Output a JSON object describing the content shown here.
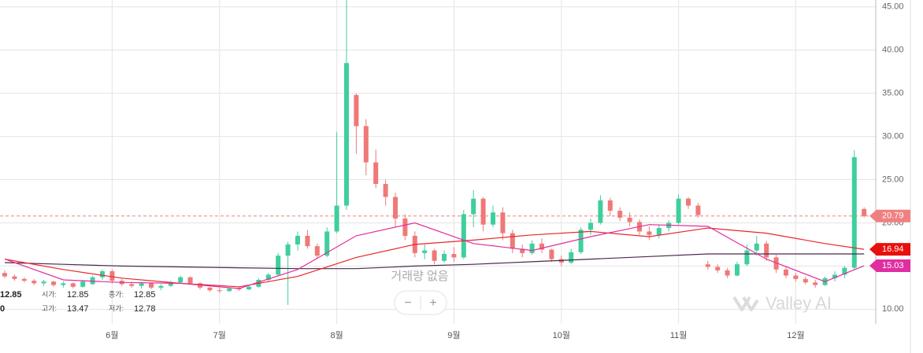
{
  "chart_data": {
    "type": "candlestick",
    "categories": [
      null,
      null,
      null,
      null,
      null,
      null,
      null,
      null,
      null,
      null,
      null,
      "6월",
      null,
      null,
      null,
      null,
      null,
      null,
      null,
      null,
      null,
      null,
      "7월",
      null,
      null,
      null,
      null,
      null,
      null,
      null,
      null,
      null,
      null,
      null,
      "8월",
      null,
      null,
      null,
      null,
      null,
      null,
      null,
      null,
      null,
      null,
      null,
      "9월",
      null,
      null,
      null,
      null,
      null,
      null,
      null,
      null,
      null,
      null,
      "10월",
      null,
      null,
      null,
      null,
      null,
      null,
      null,
      null,
      null,
      null,
      null,
      "11월",
      null,
      null,
      null,
      null,
      null,
      null,
      null,
      null,
      null,
      null,
      null,
      "12월",
      null,
      null,
      null,
      null,
      null,
      null,
      null
    ],
    "open": [
      14.2,
      13.8,
      13.5,
      13.3,
      13.0,
      13.2,
      12.8,
      13.0,
      12.6,
      12.9,
      13.7,
      14.4,
      13.3,
      12.9,
      12.7,
      13.0,
      12.5,
      12.7,
      13.1,
      13.7,
      13.0,
      12.5,
      12.2,
      12.1,
      12.4,
      12.3,
      12.6,
      13.4,
      14.0,
      16.2,
      17.5,
      18.5,
      17.3,
      16.2,
      19.0,
      22.0,
      34.8,
      31.2,
      27.0,
      24.5,
      23.0,
      20.5,
      18.5,
      16.5,
      16.8,
      15.6,
      16.4,
      16.0,
      21.0,
      22.8,
      19.8,
      21.2,
      18.8,
      17.0,
      16.5,
      17.6,
      16.9,
      15.8,
      15.4,
      16.6,
      19.2,
      20.0,
      22.6,
      21.4,
      20.6,
      20.1,
      19.0,
      18.6,
      19.4,
      20.0,
      22.8,
      22.0,
      15.2,
      14.9,
      14.5,
      13.9,
      15.2,
      16.8,
      17.6,
      16.0,
      14.6,
      13.9,
      13.5,
      13.1,
      12.8,
      13.6,
      14.0,
      14.8,
      21.6
    ],
    "high": [
      14.5,
      14.0,
      13.7,
      13.5,
      13.4,
      13.3,
      13.2,
      13.1,
      13.4,
      13.9,
      14.6,
      14.6,
      13.5,
      13.2,
      13.2,
      13.1,
      12.9,
      13.3,
      13.9,
      13.8,
      13.1,
      12.6,
      12.5,
      12.5,
      12.6,
      12.8,
      13.6,
      14.2,
      16.5,
      17.8,
      19.0,
      19.2,
      17.6,
      19.5,
      30.5,
      45.8,
      35.0,
      32.0,
      28.5,
      25.0,
      23.5,
      21.0,
      19.0,
      17.5,
      17.0,
      16.8,
      17.2,
      21.5,
      23.8,
      23.0,
      22.0,
      21.8,
      19.2,
      17.5,
      18.0,
      18.2,
      17.0,
      16.2,
      17.0,
      19.5,
      20.5,
      23.2,
      22.9,
      21.8,
      21.2,
      20.4,
      19.6,
      19.8,
      20.3,
      23.3,
      23.0,
      22.3,
      15.6,
      15.2,
      14.8,
      15.5,
      17.5,
      18.5,
      17.9,
      16.3,
      14.9,
      14.2,
      13.8,
      13.4,
      13.8,
      14.4,
      15.0,
      28.4,
      21.8
    ],
    "low": [
      13.6,
      13.3,
      13.1,
      12.8,
      12.7,
      12.6,
      12.5,
      12.4,
      12.5,
      12.8,
      13.4,
      13.0,
      12.7,
      12.5,
      12.4,
      12.3,
      12.2,
      12.6,
      13.0,
      12.8,
      12.3,
      12.0,
      11.9,
      12.0,
      12.1,
      12.2,
      12.5,
      13.2,
      13.8,
      10.5,
      16.8,
      17.0,
      15.8,
      16.0,
      18.8,
      21.5,
      28.0,
      25.5,
      24.0,
      22.0,
      19.5,
      18.0,
      16.0,
      15.8,
      15.2,
      15.4,
      15.5,
      15.8,
      19.5,
      19.0,
      19.5,
      18.0,
      16.5,
      16.0,
      16.3,
      16.5,
      15.5,
      15.0,
      15.2,
      16.4,
      18.6,
      19.8,
      20.8,
      20.2,
      19.6,
      18.6,
      18.0,
      18.2,
      19.0,
      19.8,
      21.6,
      20.6,
      14.6,
      14.2,
      13.6,
      13.8,
      15.0,
      16.2,
      15.6,
      14.2,
      13.6,
      13.2,
      12.9,
      12.5,
      12.7,
      13.2,
      13.6,
      14.6,
      20.6
    ],
    "close": [
      13.8,
      13.5,
      13.3,
      13.0,
      13.2,
      12.8,
      13.0,
      12.6,
      13.2,
      13.7,
      14.4,
      13.3,
      12.9,
      12.7,
      13.0,
      12.5,
      12.7,
      13.1,
      13.7,
      13.0,
      12.5,
      12.2,
      12.1,
      12.4,
      12.3,
      12.6,
      13.4,
      14.0,
      16.2,
      17.5,
      18.5,
      17.3,
      16.2,
      19.0,
      22.0,
      38.5,
      31.2,
      27.0,
      24.5,
      23.0,
      20.5,
      18.5,
      16.5,
      16.8,
      15.6,
      16.4,
      16.0,
      21.0,
      22.8,
      19.8,
      21.2,
      18.8,
      17.0,
      16.5,
      17.6,
      16.9,
      15.8,
      15.4,
      16.6,
      19.2,
      20.0,
      22.6,
      21.4,
      20.6,
      20.1,
      19.0,
      18.6,
      19.4,
      20.0,
      22.8,
      22.0,
      20.9,
      14.9,
      14.5,
      13.9,
      15.2,
      16.8,
      17.6,
      16.0,
      14.6,
      13.9,
      13.5,
      13.1,
      12.8,
      13.6,
      14.0,
      14.8,
      27.6,
      20.79
    ],
    "up_color": "#3fcf9c",
    "down_color": "#f07878",
    "ylim": [
      8.3,
      45.8
    ],
    "yticks": [
      {
        "value": 10,
        "label": "10.00"
      },
      {
        "value": 15,
        "label": "15.00"
      },
      {
        "value": 20,
        "label": "20.00"
      },
      {
        "value": 25,
        "label": "25.00"
      },
      {
        "value": 30,
        "label": "30.00"
      },
      {
        "value": 35,
        "label": "35.00"
      },
      {
        "value": 40,
        "label": "40.00"
      },
      {
        "value": 45,
        "label": "45.00"
      }
    ],
    "grid": true,
    "moving_averages": [
      {
        "color": "#4a2a4a",
        "x": [
          0,
          6,
          12,
          18,
          24,
          30,
          36,
          42,
          48,
          54,
          60,
          66,
          72,
          78,
          84,
          88
        ],
        "values": [
          15.4,
          15.2,
          15.0,
          14.9,
          14.8,
          14.7,
          14.7,
          15.0,
          15.2,
          15.5,
          15.8,
          16.1,
          16.4,
          16.4,
          16.4,
          16.4
        ]
      },
      {
        "color": "#e8262c",
        "x": [
          0,
          6,
          12,
          18,
          24,
          30,
          36,
          42,
          48,
          54,
          60,
          66,
          72,
          78,
          84,
          88
        ],
        "values": [
          15.8,
          14.6,
          13.6,
          13.0,
          12.6,
          13.8,
          16.0,
          17.5,
          18.0,
          18.6,
          19.0,
          18.4,
          19.4,
          18.8,
          17.6,
          16.94
        ]
      },
      {
        "color": "#e02ea0",
        "x": [
          0,
          6,
          12,
          18,
          24,
          30,
          36,
          42,
          48,
          54,
          60,
          66,
          72,
          78,
          84,
          88
        ],
        "values": [
          15.8,
          13.4,
          13.1,
          13.0,
          12.4,
          14.6,
          18.5,
          20.0,
          17.6,
          16.8,
          18.4,
          19.8,
          19.6,
          15.8,
          13.2,
          15.03
        ]
      }
    ],
    "price_labels": [
      {
        "value": 20.79,
        "color": "#f08080",
        "dashed": true
      },
      {
        "value": 16.94,
        "color": "#e8100c",
        "dashed": false
      },
      {
        "value": 15.03,
        "color": "#e02ea0",
        "dashed": false
      }
    ]
  },
  "watermark": "거래량 없음",
  "brand": "Valley AI",
  "zoom": [
    "−",
    "+"
  ],
  "info_panel": {
    "rows": [
      [
        "12.85",
        "시가:",
        "12.85",
        "종가:",
        "12.85"
      ],
      [
        "0",
        "고가:",
        "13.47",
        "저가:",
        "12.78"
      ]
    ]
  }
}
